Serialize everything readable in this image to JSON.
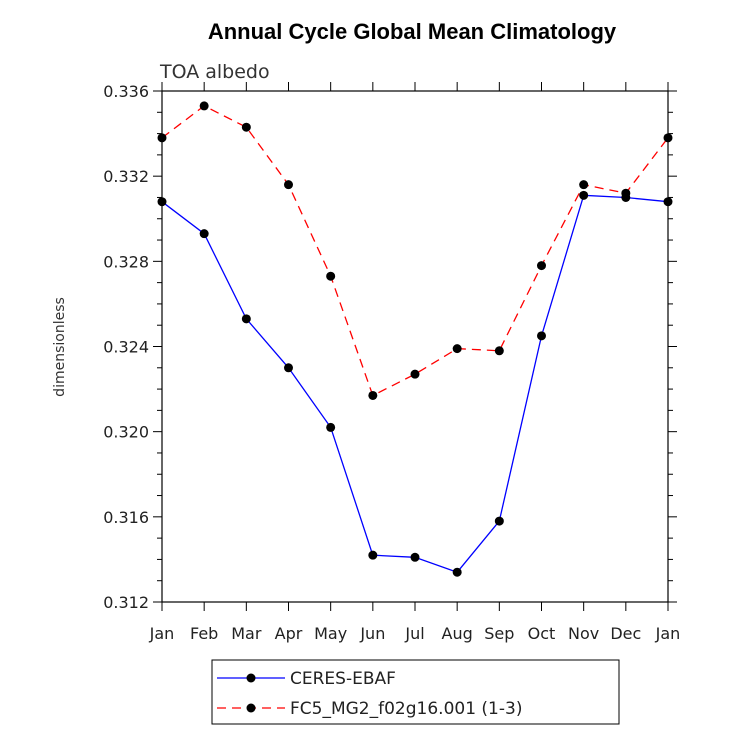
{
  "chart_data": {
    "type": "line",
    "title": "Annual Cycle Global Mean Climatology",
    "subtitle": "TOA albedo",
    "xlabel": "",
    "ylabel": "dimensionless",
    "categories": [
      "Jan",
      "Feb",
      "Mar",
      "Apr",
      "May",
      "Jun",
      "Jul",
      "Aug",
      "Sep",
      "Oct",
      "Nov",
      "Dec",
      "Jan"
    ],
    "ylim": [
      0.312,
      0.336
    ],
    "yticks": [
      0.312,
      0.316,
      0.32,
      0.324,
      0.328,
      0.332,
      0.336
    ],
    "ytick_labels": [
      "0.312",
      "0.316",
      "0.320",
      "0.324",
      "0.328",
      "0.332",
      "0.336"
    ],
    "grid": false,
    "legend_position": "bottom",
    "series": [
      {
        "name": "CERES-EBAF",
        "color": "#0000ff",
        "style": "solid",
        "values": [
          0.3308,
          0.3293,
          0.3253,
          0.323,
          0.3202,
          0.3142,
          0.3141,
          0.3134,
          0.3158,
          0.3245,
          0.3311,
          0.331,
          0.3308
        ]
      },
      {
        "name": "FC5_MG2_f02g16.001 (1-3)",
        "color": "#ff0000",
        "style": "dashed",
        "values": [
          0.3338,
          0.3353,
          0.3343,
          0.3316,
          0.3273,
          0.3217,
          0.3227,
          0.3239,
          0.3238,
          0.3278,
          0.3316,
          0.3312,
          0.3338
        ]
      }
    ]
  }
}
